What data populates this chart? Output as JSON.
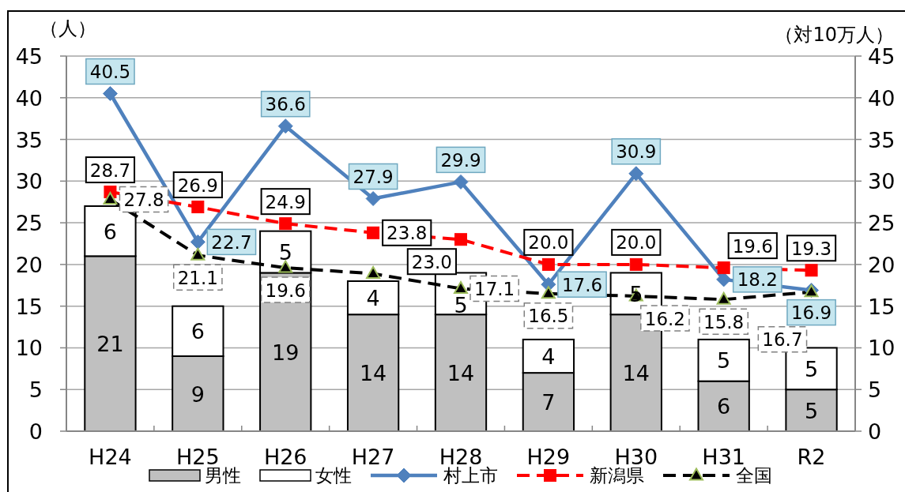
{
  "chart_data": {
    "type": "bar",
    "stacked": true,
    "ylabel": "（人）",
    "y2label": "（対10万人）",
    "categories": [
      "H24",
      "H25",
      "H26",
      "H27",
      "H28",
      "H29",
      "H30",
      "H31",
      "R2"
    ],
    "ylim": [
      0,
      45
    ],
    "yticks": [
      0,
      5,
      10,
      15,
      20,
      25,
      30,
      35,
      40,
      45
    ],
    "y2lim": [
      0,
      45
    ],
    "y2ticks": [
      0,
      5,
      10,
      15,
      20,
      25,
      30,
      35,
      40,
      45
    ],
    "grid": "y",
    "legend": "bottom",
    "series": [
      {
        "name": "男性",
        "color": "#c0c0c0",
        "values": [
          21,
          9,
          19,
          14,
          14,
          7,
          14,
          6,
          5
        ],
        "value_labels": [
          "21",
          "9",
          "19",
          "14",
          "14",
          "7",
          "14",
          "6",
          "5"
        ]
      },
      {
        "name": "女性",
        "color": "#ffffff",
        "values": [
          6,
          6,
          5,
          4,
          5,
          4,
          5,
          5,
          5
        ],
        "value_labels": [
          "6",
          "6",
          "5",
          "4",
          "5",
          "4",
          "5",
          "5",
          "5"
        ]
      },
      {
        "name": "村上市",
        "type": "line",
        "axis": "y2",
        "color": "#4f81bd",
        "marker": "diamond",
        "line_style": "solid",
        "values": [
          40.5,
          22.7,
          36.6,
          27.9,
          29.9,
          17.6,
          30.9,
          18.2,
          16.9
        ],
        "value_labels": [
          "40.5",
          "22.7",
          "36.6",
          "27.9",
          "29.9",
          "17.6",
          "30.9",
          "18.2",
          "16.9"
        ]
      },
      {
        "name": "新潟県",
        "type": "line",
        "axis": "y2",
        "color": "#ff0000",
        "marker": "square",
        "line_style": "dashed",
        "values": [
          28.7,
          26.9,
          24.9,
          23.8,
          23.0,
          20.0,
          20.0,
          19.6,
          19.3
        ],
        "value_labels": [
          "28.7",
          "26.9",
          "24.9",
          "23.8",
          "23.0",
          "20.0",
          "20.0",
          "19.6",
          "19.3"
        ]
      },
      {
        "name": "全国",
        "type": "line",
        "axis": "y2",
        "color": "#000000",
        "marker": "triangle",
        "line_style": "dashed",
        "values": [
          27.8,
          21.1,
          19.6,
          18.9,
          17.1,
          16.5,
          16.2,
          15.8,
          16.7
        ],
        "value_labels": [
          "27.8",
          "21.1",
          "19.6",
          null,
          "17.1",
          "16.5",
          "16.2",
          "15.8",
          "16.7"
        ]
      }
    ]
  }
}
